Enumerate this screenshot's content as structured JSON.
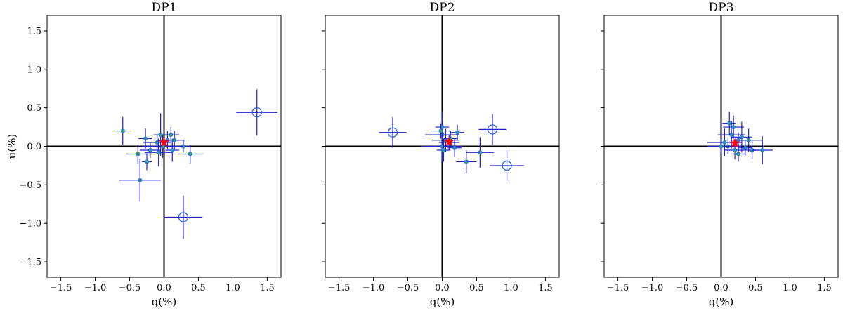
{
  "colors": {
    "errorbar": "#1f1fd0",
    "marker_edge": "#2a5fe0",
    "marker_fill": "#2a9a9a",
    "mean": "#ff0000",
    "axes": "#000000",
    "frame": "#000000"
  },
  "chart_data": [
    {
      "type": "scatter",
      "title": "DP1",
      "xlabel": "q(%)",
      "ylabel": "u(%)",
      "xlim": [
        -1.7,
        1.7
      ],
      "ylim": [
        -1.7,
        1.7
      ],
      "xticks": [
        "−1.5",
        "−1.0",
        "−0.5",
        "0.0",
        "0.5",
        "1.0",
        "1.5"
      ],
      "yticks": [
        "−1.5",
        "−1.0",
        "−0.5",
        "0.0",
        "0.5",
        "1.0",
        "1.5"
      ],
      "show_ytick_labels": true,
      "grid": false,
      "points": [
        {
          "q": -0.6,
          "u": 0.2,
          "qe": 0.13,
          "ue": 0.18
        },
        {
          "q": -0.38,
          "u": -0.1,
          "qe": 0.17,
          "ue": 0.12
        },
        {
          "q": -0.35,
          "u": -0.44,
          "qe": 0.3,
          "ue": 0.28
        },
        {
          "q": -0.25,
          "u": -0.2,
          "qe": 0.07,
          "ue": 0.11
        },
        {
          "q": -0.27,
          "u": 0.1,
          "qe": 0.1,
          "ue": 0.13
        },
        {
          "q": -0.2,
          "u": -0.05,
          "qe": 0.15,
          "ue": 0.1
        },
        {
          "q": -0.1,
          "u": 0.05,
          "qe": 0.2,
          "ue": 0.1
        },
        {
          "q": -0.05,
          "u": 0.15,
          "qe": 0.1,
          "ue": 0.28
        },
        {
          "q": -0.08,
          "u": -0.08,
          "qe": 0.2,
          "ue": 0.18
        },
        {
          "q": 0.05,
          "u": 0.08,
          "qe": 0.15,
          "ue": 0.12
        },
        {
          "q": 0.1,
          "u": 0.15,
          "qe": 0.12,
          "ue": 0.1
        },
        {
          "q": 0.12,
          "u": -0.05,
          "qe": 0.1,
          "ue": 0.15
        },
        {
          "q": 0.15,
          "u": 0.08,
          "qe": 0.15,
          "ue": 0.12
        },
        {
          "q": 0.28,
          "u": 0.0,
          "qe": 0.1,
          "ue": 0.08
        },
        {
          "q": 0.38,
          "u": -0.1,
          "qe": 0.18,
          "ue": 0.12
        },
        {
          "q": -0.02,
          "u": 0.0,
          "qe": 0.3,
          "ue": 0.15
        }
      ],
      "outliers": [
        {
          "q": 1.35,
          "u": 0.44,
          "qe": 0.3,
          "ue": 0.3
        },
        {
          "q": 0.28,
          "u": -0.92,
          "qe": 0.28,
          "ue": 0.28
        }
      ],
      "mean": {
        "q": 0.0,
        "u": 0.05
      }
    },
    {
      "type": "scatter",
      "title": "DP2",
      "xlabel": "q(%)",
      "ylabel": "",
      "xlim": [
        -1.7,
        1.7
      ],
      "ylim": [
        -1.7,
        1.7
      ],
      "xticks": [
        "−1.5",
        "−1.0",
        "−0.5",
        "0.0",
        "0.5",
        "1.0",
        "1.5"
      ],
      "yticks": [],
      "show_ytick_labels": false,
      "grid": false,
      "points": [
        {
          "q": 0.0,
          "u": 0.15,
          "qe": 0.25,
          "ue": 0.28
        },
        {
          "q": 0.05,
          "u": 0.08,
          "qe": 0.2,
          "ue": 0.15
        },
        {
          "q": 0.0,
          "u": 0.0,
          "qe": 0.3,
          "ue": 0.2
        },
        {
          "q": 0.1,
          "u": 0.05,
          "qe": 0.15,
          "ue": 0.1
        },
        {
          "q": 0.18,
          "u": -0.02,
          "qe": 0.1,
          "ue": 0.12
        },
        {
          "q": 0.22,
          "u": 0.18,
          "qe": 0.1,
          "ue": 0.1
        },
        {
          "q": 0.35,
          "u": -0.2,
          "qe": 0.15,
          "ue": 0.15
        },
        {
          "q": 0.55,
          "u": -0.08,
          "qe": 0.2,
          "ue": 0.2
        },
        {
          "q": 0.02,
          "u": -0.05,
          "qe": 0.1,
          "ue": 0.15
        },
        {
          "q": 0.0,
          "u": 0.25,
          "qe": 0.1,
          "ue": 0.2
        },
        {
          "q": 0.12,
          "u": 0.1,
          "qe": 0.1,
          "ue": 0.1
        },
        {
          "q": -0.02,
          "u": 0.2,
          "qe": 0.15,
          "ue": 0.1
        }
      ],
      "outliers": [
        {
          "q": -0.72,
          "u": 0.18,
          "qe": 0.2,
          "ue": 0.2
        },
        {
          "q": 0.73,
          "u": 0.22,
          "qe": 0.2,
          "ue": 0.2
        },
        {
          "q": 0.94,
          "u": -0.25,
          "qe": 0.25,
          "ue": 0.2
        }
      ],
      "mean": {
        "q": 0.1,
        "u": 0.06
      }
    },
    {
      "type": "scatter",
      "title": "DP3",
      "xlabel": "q(%)",
      "ylabel": "",
      "xlim": [
        -1.7,
        1.7
      ],
      "ylim": [
        -1.7,
        1.7
      ],
      "xticks": [
        "−1.5",
        "−1.0",
        "−0.5",
        "0.0",
        "0.5",
        "1.0",
        "1.5"
      ],
      "yticks": [],
      "show_ytick_labels": false,
      "grid": false,
      "points": [
        {
          "q": 0.05,
          "u": 0.05,
          "qe": 0.25,
          "ue": 0.18
        },
        {
          "q": 0.1,
          "u": 0.0,
          "qe": 0.2,
          "ue": 0.1
        },
        {
          "q": 0.15,
          "u": 0.15,
          "qe": 0.2,
          "ue": 0.18
        },
        {
          "q": 0.18,
          "u": 0.25,
          "qe": 0.15,
          "ue": 0.15
        },
        {
          "q": 0.2,
          "u": -0.05,
          "qe": 0.15,
          "ue": 0.12
        },
        {
          "q": 0.25,
          "u": 0.08,
          "qe": 0.1,
          "ue": 0.1
        },
        {
          "q": 0.3,
          "u": 0.12,
          "qe": 0.15,
          "ue": 0.2
        },
        {
          "q": 0.35,
          "u": -0.02,
          "qe": 0.1,
          "ue": 0.1
        },
        {
          "q": 0.4,
          "u": 0.08,
          "qe": 0.2,
          "ue": 0.15
        },
        {
          "q": 0.45,
          "u": -0.05,
          "qe": 0.1,
          "ue": 0.12
        },
        {
          "q": 0.6,
          "u": -0.05,
          "qe": 0.15,
          "ue": 0.18
        },
        {
          "q": 0.0,
          "u": 0.0,
          "qe": 0.2,
          "ue": 0.1
        },
        {
          "q": 0.25,
          "u": -0.1,
          "qe": 0.1,
          "ue": 0.1
        },
        {
          "q": 0.12,
          "u": 0.3,
          "qe": 0.1,
          "ue": 0.15
        }
      ],
      "outliers": [],
      "mean": {
        "q": 0.2,
        "u": 0.04
      }
    }
  ]
}
